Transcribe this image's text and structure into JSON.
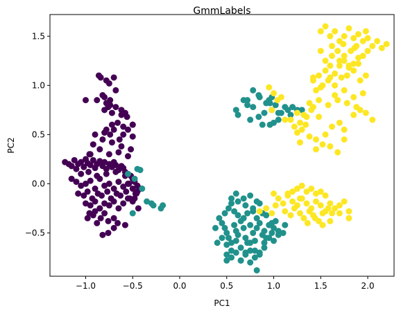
{
  "chart_data": {
    "type": "scatter",
    "title": "GmmLabels",
    "xlabel": "PC1",
    "ylabel": "PC2",
    "xlim": [
      -1.38,
      2.28
    ],
    "ylim": [
      -0.94,
      1.72
    ],
    "xticks": [
      -1.0,
      -0.5,
      0.0,
      0.5,
      1.0,
      1.5,
      2.0
    ],
    "xtick_labels": [
      "−1.0",
      "−0.5",
      "0.0",
      "0.5",
      "1.0",
      "1.5",
      "2.0"
    ],
    "yticks": [
      -0.5,
      0.0,
      0.5,
      1.0,
      1.5
    ],
    "ytick_labels": [
      "−0.5",
      "0.0",
      "0.5",
      "1.0",
      "1.5"
    ],
    "grid": false,
    "legend": "none",
    "colors": {
      "0": "#440154",
      "1": "#21918c",
      "2": "#fde725"
    },
    "series": [
      {
        "label_id": 0,
        "x": [
          -1.22,
          -1.18,
          -1.15,
          -1.12,
          -1.1,
          -1.08,
          -1.05,
          -1.02,
          -1.0,
          -0.98,
          -0.95,
          -0.92,
          -0.9,
          -0.88,
          -0.85,
          -0.82,
          -0.8,
          -0.78,
          -0.75,
          -0.72,
          -0.7,
          -0.68,
          -0.65,
          -0.62,
          -0.6,
          -0.58,
          -0.55,
          -0.52,
          -0.5,
          -0.48,
          -0.45,
          -0.42,
          -1.15,
          -1.1,
          -1.05,
          -1.0,
          -0.95,
          -0.9,
          -0.85,
          -0.8,
          -0.75,
          -0.7,
          -0.65,
          -0.6,
          -0.55,
          -0.5,
          -0.45,
          -1.08,
          -1.02,
          -0.98,
          -0.93,
          -0.87,
          -0.83,
          -0.77,
          -0.73,
          -0.67,
          -0.63,
          -0.57,
          -0.53,
          -0.47,
          -1.0,
          -0.95,
          -0.9,
          -0.85,
          -0.8,
          -0.75,
          -0.7,
          -0.65,
          -0.6,
          -0.55,
          -0.5,
          -1.05,
          -0.97,
          -0.88,
          -0.78,
          -0.68,
          -0.58,
          -0.48,
          -0.95,
          -0.85,
          -0.75,
          -0.65,
          -0.55,
          -0.92,
          -0.82,
          -0.72,
          -0.62,
          -0.52,
          -0.9,
          -0.8,
          -0.7,
          -0.6,
          -0.5,
          -0.78,
          -0.74,
          -0.82,
          -0.76,
          -0.8,
          -0.72,
          -0.78,
          -0.84,
          -0.86,
          -0.75,
          -0.7,
          -0.68,
          -0.88,
          -0.8,
          -0.74,
          -0.68,
          -0.62,
          -0.58,
          -0.72,
          -0.66,
          -0.6,
          -0.55,
          -0.5,
          -0.96,
          -0.98,
          -0.92,
          -0.88,
          -0.84,
          -0.8,
          -0.76,
          -0.7,
          -0.9,
          -0.85,
          -0.96,
          -1.0,
          -0.78,
          -0.74,
          -0.64,
          -0.56,
          -0.5,
          -0.62,
          -0.58,
          -0.7,
          -0.76,
          -0.66,
          -0.82,
          -0.54,
          -0.46,
          -0.44,
          -0.48
        ],
        "y": [
          0.22,
          0.2,
          0.18,
          0.24,
          0.15,
          0.2,
          0.22,
          0.17,
          0.25,
          0.21,
          0.19,
          0.24,
          0.16,
          0.2,
          0.23,
          0.18,
          0.22,
          0.15,
          0.2,
          0.17,
          0.22,
          0.19,
          0.14,
          0.18,
          0.16,
          0.12,
          0.1,
          0.08,
          0.05,
          0.02,
          -0.02,
          -0.05,
          0.05,
          0.02,
          -0.02,
          0.0,
          0.03,
          -0.05,
          0.05,
          -0.02,
          0.0,
          -0.05,
          0.02,
          -0.03,
          0.0,
          -0.05,
          -0.08,
          -0.1,
          -0.12,
          -0.08,
          -0.15,
          -0.1,
          -0.12,
          -0.08,
          -0.15,
          -0.1,
          -0.12,
          -0.08,
          -0.15,
          -0.1,
          -0.2,
          -0.22,
          -0.18,
          -0.25,
          -0.2,
          -0.22,
          -0.18,
          -0.25,
          -0.2,
          -0.15,
          -0.18,
          0.1,
          0.12,
          0.08,
          0.1,
          0.12,
          0.08,
          0.05,
          0.3,
          0.35,
          0.3,
          0.32,
          0.28,
          0.4,
          0.45,
          0.42,
          0.38,
          0.35,
          0.5,
          0.52,
          0.55,
          0.5,
          0.48,
          0.82,
          0.85,
          0.9,
          0.78,
          0.75,
          0.72,
          1.05,
          1.08,
          1.1,
          1.02,
          1.08,
          0.95,
          0.85,
          0.88,
          0.8,
          0.78,
          0.75,
          0.72,
          0.6,
          0.62,
          0.58,
          0.55,
          0.6,
          -0.3,
          -0.35,
          -0.32,
          -0.4,
          -0.35,
          -0.3,
          -0.38,
          -0.35,
          -0.28,
          -0.25,
          0.3,
          0.85,
          0.55,
          0.5,
          0.45,
          0.68,
          0.6,
          0.7,
          -0.42,
          -0.45,
          -0.5,
          -0.4,
          -0.52,
          0.0,
          -0.1,
          -0.25,
          -0.15
        ]
      },
      {
        "label_id": 1,
        "x": [
          0.42,
          0.45,
          0.48,
          0.5,
          0.52,
          0.55,
          0.58,
          0.6,
          0.62,
          0.65,
          0.68,
          0.7,
          0.72,
          0.75,
          0.78,
          0.8,
          0.82,
          0.85,
          0.88,
          0.9,
          0.92,
          0.95,
          0.98,
          1.0,
          1.02,
          1.05,
          0.45,
          0.5,
          0.55,
          0.6,
          0.65,
          0.7,
          0.75,
          0.8,
          0.85,
          0.9,
          0.95,
          1.0,
          1.05,
          1.1,
          0.48,
          0.52,
          0.58,
          0.62,
          0.68,
          0.72,
          0.78,
          0.82,
          0.88,
          0.92,
          0.98,
          0.5,
          0.55,
          0.6,
          0.65,
          0.7,
          0.75,
          0.8,
          0.85,
          0.9,
          0.55,
          0.62,
          0.7,
          0.78,
          0.85,
          0.6,
          0.68,
          0.75,
          0.82,
          0.38,
          0.4,
          0.65,
          0.75,
          0.5,
          0.55,
          1.12,
          0.82,
          0.6,
          0.72,
          0.78,
          0.85,
          0.92,
          0.98,
          1.02,
          1.08,
          1.12,
          1.15,
          0.75,
          0.62,
          1.05,
          0.96,
          0.9,
          0.84,
          0.88,
          0.96,
          1.2,
          1.25,
          0.68,
          0.72,
          0.84,
          0.95,
          1.05,
          0.78,
          0.98,
          1.18,
          1.0,
          1.3,
          -0.48,
          -0.4,
          -0.3,
          -0.2,
          -0.55,
          -0.45,
          -0.42,
          -0.5,
          -0.35,
          -0.28,
          -0.18
        ],
        "y": [
          -0.35,
          -0.4,
          -0.45,
          -0.5,
          -0.55,
          -0.6,
          -0.42,
          -0.48,
          -0.52,
          -0.38,
          -0.45,
          -0.55,
          -0.6,
          -0.42,
          -0.5,
          -0.58,
          -0.45,
          -0.4,
          -0.52,
          -0.48,
          -0.55,
          -0.42,
          -0.5,
          -0.45,
          -0.38,
          -0.48,
          -0.55,
          -0.62,
          -0.68,
          -0.58,
          -0.65,
          -0.7,
          -0.6,
          -0.68,
          -0.72,
          -0.6,
          -0.55,
          -0.58,
          -0.52,
          -0.5,
          -0.3,
          -0.25,
          -0.28,
          -0.32,
          -0.35,
          -0.3,
          -0.28,
          -0.35,
          -0.3,
          -0.32,
          -0.4,
          -0.72,
          -0.75,
          -0.7,
          -0.78,
          -0.72,
          -0.68,
          -0.75,
          -0.7,
          -0.65,
          -0.2,
          -0.18,
          -0.22,
          -0.25,
          -0.2,
          -0.1,
          -0.15,
          -0.12,
          -0.18,
          -0.45,
          -0.6,
          -0.78,
          -0.8,
          -0.78,
          -0.15,
          -0.42,
          -0.88,
          0.75,
          0.85,
          0.78,
          0.88,
          0.82,
          0.75,
          0.8,
          0.72,
          0.78,
          0.75,
          0.65,
          0.7,
          0.65,
          0.6,
          0.72,
          0.68,
          0.6,
          0.82,
          0.78,
          0.75,
          0.85,
          0.8,
          0.9,
          0.85,
          0.72,
          0.95,
          0.88,
          0.7,
          0.62,
          0.75,
          0.05,
          -0.05,
          -0.2,
          -0.25,
          0.1,
          0.15,
          0.14,
          -0.3,
          -0.18,
          -0.22,
          -0.22
        ]
      },
      {
        "label_id": 2,
        "x": [
          1.0,
          1.05,
          1.1,
          1.15,
          1.2,
          1.25,
          1.3,
          1.35,
          1.4,
          1.45,
          1.5,
          1.55,
          1.6,
          1.65,
          1.7,
          1.75,
          1.8,
          1.12,
          1.18,
          1.22,
          1.28,
          1.32,
          1.38,
          1.42,
          1.48,
          1.52,
          1.58,
          1.62,
          1.25,
          1.3,
          1.35,
          1.4,
          1.45,
          1.5,
          1.55,
          1.15,
          1.2,
          1.28,
          1.36,
          1.44,
          1.52,
          1.6,
          0.92,
          0.98,
          1.02,
          0.85,
          1.7,
          1.8,
          1.42,
          1.48,
          1.55,
          1.6,
          1.65,
          1.7,
          1.75,
          1.8,
          1.85,
          1.9,
          1.95,
          2.0,
          2.05,
          2.1,
          2.15,
          2.2,
          1.45,
          1.52,
          1.58,
          1.65,
          1.72,
          1.78,
          1.85,
          1.92,
          1.98,
          1.55,
          1.62,
          1.68,
          1.75,
          1.82,
          1.88,
          1.95,
          1.5,
          1.6,
          1.7,
          1.8,
          1.9,
          2.0,
          1.65,
          1.75,
          1.85,
          1.95,
          1.48,
          1.58,
          1.68,
          1.78,
          1.88,
          1.6,
          1.7,
          1.8,
          1.9,
          1.5,
          1.62,
          1.74,
          1.86,
          1.98,
          1.55,
          1.65,
          1.75,
          1.85,
          1.42,
          1.5,
          1.85,
          1.92,
          1.98,
          2.05,
          1.35,
          1.28,
          1.22,
          1.3,
          1.18,
          1.25,
          1.38,
          1.45,
          1.55,
          1.62,
          1.7,
          1.75,
          1.25,
          1.32,
          1.4,
          1.48,
          1.38,
          1.42,
          1.34,
          1.28,
          1.45,
          1.52,
          1.6,
          1.68,
          1.75,
          0.95,
          1.08,
          1.0,
          1.04,
          0.98,
          1.12
        ],
        "y": [
          -0.1,
          -0.15,
          -0.2,
          -0.12,
          -0.18,
          -0.22,
          -0.15,
          -0.2,
          -0.25,
          -0.18,
          -0.22,
          -0.28,
          -0.2,
          -0.25,
          -0.22,
          -0.18,
          -0.28,
          -0.28,
          -0.32,
          -0.25,
          -0.3,
          -0.35,
          -0.28,
          -0.32,
          -0.38,
          -0.3,
          -0.25,
          -0.3,
          -0.05,
          -0.02,
          -0.08,
          -0.05,
          -0.1,
          -0.08,
          -0.12,
          -0.1,
          -0.08,
          -0.15,
          -0.4,
          -0.35,
          -0.42,
          -0.38,
          -0.25,
          -0.3,
          -0.22,
          -0.28,
          -0.3,
          -0.35,
          1.05,
          1.1,
          1.15,
          1.08,
          1.12,
          1.2,
          1.25,
          1.18,
          1.22,
          1.28,
          1.3,
          1.35,
          1.4,
          1.45,
          1.38,
          1.42,
          0.95,
          1.0,
          1.05,
          1.0,
          1.08,
          1.1,
          1.15,
          1.05,
          1.1,
          1.25,
          1.3,
          1.35,
          1.3,
          1.35,
          1.4,
          1.45,
          1.55,
          1.5,
          1.45,
          1.58,
          1.52,
          1.48,
          0.9,
          0.95,
          0.88,
          0.92,
          0.85,
          0.8,
          0.85,
          0.82,
          0.78,
          1.2,
          1.25,
          1.2,
          1.22,
          1.35,
          1.4,
          1.42,
          1.38,
          1.55,
          1.6,
          1.55,
          1.5,
          1.48,
          1.08,
          0.98,
          0.7,
          0.75,
          0.72,
          0.65,
          0.68,
          0.62,
          0.58,
          0.55,
          0.65,
          0.52,
          0.48,
          0.45,
          0.5,
          0.58,
          0.62,
          0.55,
          0.72,
          0.7,
          0.75,
          0.68,
          0.82,
          0.78,
          0.6,
          0.42,
          0.35,
          0.4,
          0.38,
          0.32,
          0.45,
          0.98,
          0.88,
          0.92,
          0.85,
          0.75,
          0.65
        ]
      }
    ]
  }
}
